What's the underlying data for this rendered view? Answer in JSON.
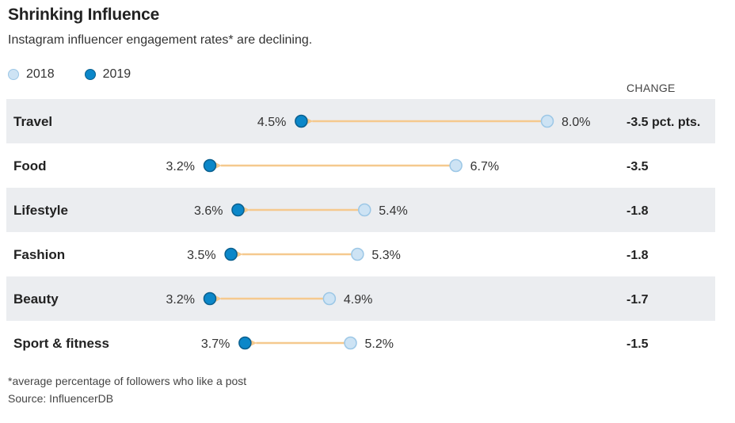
{
  "title": "Shrinking Influence",
  "subtitle": "Instagram influencer engagement rates* are declining.",
  "change_header": "CHANGE",
  "footnote": "*average percentage of followers who like a post",
  "source": "Source: InfluencerDB",
  "colors": {
    "dot_2018_fill": "#cde3f4",
    "dot_2018_stroke": "#9cc7e6",
    "dot_2019_fill": "#0b87c9",
    "dot_2019_stroke": "#0a5f8e",
    "arrow": "#f5c98e",
    "row_band": "#ebedf0"
  },
  "chart_data": {
    "type": "dumbbell",
    "legend": [
      "2018",
      "2019"
    ],
    "categories": [
      "Travel",
      "Food",
      "Lifestyle",
      "Fashion",
      "Beauty",
      "Sport & fitness"
    ],
    "series": [
      {
        "name": "2018",
        "values": [
          8.0,
          6.7,
          5.4,
          5.3,
          4.9,
          5.2
        ]
      },
      {
        "name": "2019",
        "values": [
          4.5,
          3.2,
          3.6,
          3.5,
          3.2,
          3.7
        ]
      }
    ],
    "labels_2018": [
      "8.0%",
      "6.7%",
      "5.4%",
      "5.3%",
      "4.9%",
      "5.2%"
    ],
    "labels_2019": [
      "4.5%",
      "3.2%",
      "3.6%",
      "3.5%",
      "3.2%",
      "3.7%"
    ],
    "change": [
      "-3.5 pct. pts.",
      "-3.5",
      "-1.8",
      "-1.8",
      "-1.7",
      "-1.5"
    ],
    "xlim": [
      0,
      10
    ],
    "unit": "%"
  }
}
